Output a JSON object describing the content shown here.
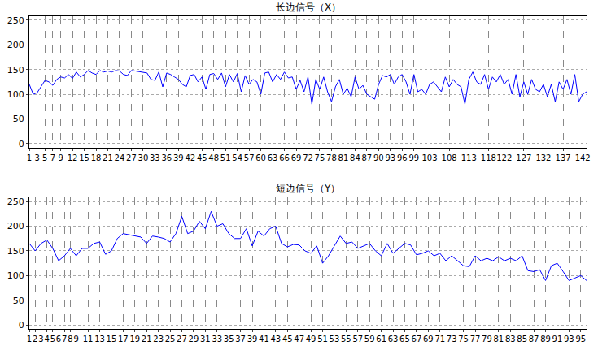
{
  "chart_data": [
    {
      "type": "line",
      "title": "长边信号（X）",
      "color": "#0000ff",
      "grid": true,
      "x": [
        1,
        2,
        3,
        4,
        5,
        6,
        7,
        8,
        9,
        10,
        11,
        12,
        13,
        14,
        15,
        16,
        17,
        18,
        19,
        20,
        21,
        22,
        23,
        24,
        25,
        26,
        27,
        28,
        29,
        30,
        31,
        32,
        33,
        34,
        35,
        36,
        37,
        38,
        39,
        40,
        41,
        42,
        43,
        44,
        45,
        46,
        47,
        48,
        49,
        50,
        51,
        52,
        53,
        54,
        55,
        56,
        57,
        58,
        59,
        60,
        61,
        62,
        63,
        64,
        65,
        66,
        67,
        68,
        69,
        70,
        71,
        72,
        73,
        74,
        75,
        76,
        77,
        78,
        79,
        80,
        81,
        82,
        83,
        84,
        85,
        86,
        87,
        88,
        89,
        90,
        91,
        92,
        93,
        94,
        95,
        96,
        97,
        98,
        99,
        100,
        101,
        102,
        103,
        104,
        105,
        106,
        107,
        108,
        109,
        110,
        111,
        112,
        113,
        114,
        115,
        116,
        117,
        118,
        119,
        120,
        121,
        122,
        123,
        124,
        125,
        126,
        127,
        128,
        129,
        130,
        131,
        132,
        133,
        134,
        135,
        136,
        137,
        138,
        139,
        140,
        141,
        142,
        143
      ],
      "values": [
        120,
        100,
        103,
        115,
        128,
        125,
        118,
        130,
        135,
        133,
        140,
        132,
        145,
        135,
        140,
        148,
        143,
        140,
        148,
        145,
        147,
        145,
        148,
        147,
        140,
        138,
        148,
        147,
        146,
        145,
        143,
        130,
        128,
        145,
        115,
        143,
        140,
        135,
        130,
        120,
        115,
        138,
        140,
        125,
        135,
        110,
        140,
        142,
        130,
        143,
        115,
        140,
        125,
        142,
        105,
        138,
        120,
        130,
        125,
        100,
        143,
        145,
        125,
        140,
        130,
        145,
        133,
        135,
        110,
        128,
        105,
        135,
        80,
        130,
        110,
        135,
        105,
        85,
        115,
        130,
        100,
        112,
        95,
        135,
        110,
        118,
        100,
        95,
        90,
        120,
        138,
        135,
        140,
        120,
        135,
        140,
        125,
        100,
        140,
        105,
        110,
        100,
        120,
        125,
        115,
        105,
        135,
        115,
        130,
        120,
        115,
        80,
        130,
        145,
        125,
        120,
        140,
        110,
        135,
        125,
        140,
        120,
        130,
        100,
        140,
        95,
        125,
        100,
        130,
        110,
        105,
        120,
        95,
        120,
        85,
        125,
        110,
        130,
        100,
        140,
        85,
        100,
        105
      ],
      "xlim": [
        1,
        143
      ],
      "xticks": [
        1,
        3,
        5,
        7,
        9,
        12,
        15,
        18,
        21,
        24,
        27,
        30,
        33,
        36,
        39,
        42,
        45,
        48,
        51,
        54,
        57,
        60,
        63,
        66,
        69,
        72,
        75,
        78,
        81,
        84,
        87,
        90,
        93,
        96,
        99,
        103,
        108,
        113,
        118,
        122,
        127,
        132,
        137,
        142
      ],
      "ylim": [
        -8,
        258
      ],
      "yticks": [
        0,
        50,
        100,
        150,
        200,
        250
      ]
    },
    {
      "type": "line",
      "title": "短边信号（Y）",
      "color": "#0000ff",
      "grid": true,
      "x": [
        1,
        2,
        3,
        4,
        5,
        6,
        7,
        8,
        9,
        10,
        11,
        12,
        13,
        14,
        15,
        16,
        17,
        18,
        19,
        20,
        21,
        22,
        23,
        24,
        25,
        26,
        27,
        28,
        29,
        30,
        31,
        32,
        33,
        34,
        35,
        36,
        37,
        38,
        39,
        40,
        41,
        42,
        43,
        44,
        45,
        46,
        47,
        48,
        49,
        50,
        51,
        52,
        53,
        54,
        55,
        56,
        57,
        58,
        59,
        60,
        61,
        62,
        63,
        64,
        65,
        66,
        67,
        68,
        69,
        70,
        71,
        72,
        73,
        74,
        75,
        76,
        77,
        78,
        79,
        80,
        81,
        82,
        83,
        84,
        85,
        86,
        87,
        88,
        89,
        90,
        91,
        92,
        93,
        94,
        95,
        96
      ],
      "values": [
        165,
        150,
        165,
        172,
        155,
        130,
        140,
        155,
        140,
        155,
        155,
        165,
        168,
        143,
        150,
        175,
        185,
        183,
        180,
        178,
        165,
        180,
        178,
        175,
        168,
        185,
        220,
        185,
        190,
        210,
        195,
        230,
        200,
        205,
        185,
        175,
        175,
        195,
        160,
        190,
        180,
        195,
        200,
        165,
        158,
        163,
        162,
        150,
        145,
        160,
        125,
        140,
        160,
        180,
        165,
        168,
        155,
        160,
        165,
        150,
        140,
        165,
        145,
        155,
        165,
        162,
        142,
        145,
        150,
        140,
        145,
        130,
        140,
        130,
        120,
        118,
        140,
        130,
        135,
        130,
        138,
        130,
        135,
        130,
        140,
        110,
        108,
        112,
        90,
        120,
        125,
        108,
        90,
        95,
        100,
        90
      ],
      "xlim": [
        1,
        96
      ],
      "xticks": [
        1,
        2,
        3,
        4,
        5,
        6,
        7,
        8,
        9,
        11,
        13,
        15,
        17,
        19,
        21,
        23,
        25,
        27,
        29,
        31,
        33,
        35,
        37,
        39,
        41,
        43,
        45,
        47,
        49,
        51,
        53,
        55,
        57,
        59,
        61,
        63,
        65,
        67,
        69,
        71,
        73,
        75,
        77,
        79,
        81,
        83,
        85,
        87,
        89,
        91,
        93,
        95
      ],
      "ylim": [
        -8,
        258
      ],
      "yticks": [
        0,
        50,
        100,
        150,
        200,
        250
      ]
    }
  ]
}
